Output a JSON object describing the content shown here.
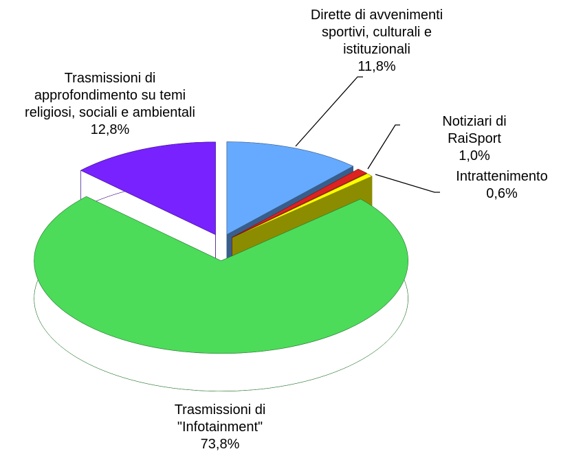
{
  "chart_data": {
    "type": "pie3d",
    "categories": [
      "Dirette di avvenimenti\nsportivi, culturali e\nistituzionali",
      "Notiziari di RaiSport",
      "Intrattenimento",
      "Trasmissioni di\n\"Infotainment\"",
      "Trasmissioni di\napprofondimento su temi\nreligiosi, sociali e ambientali"
    ],
    "values": [
      11.8,
      1.0,
      0.6,
      73.8,
      12.8
    ],
    "value_labels": [
      "11,8%",
      "1,0%",
      "0,6%",
      "73,8%",
      "12,8%"
    ],
    "colors": [
      "#66aaff",
      "#dd2222",
      "#ffff00",
      "#4cdc5a",
      "#7722ff"
    ]
  }
}
